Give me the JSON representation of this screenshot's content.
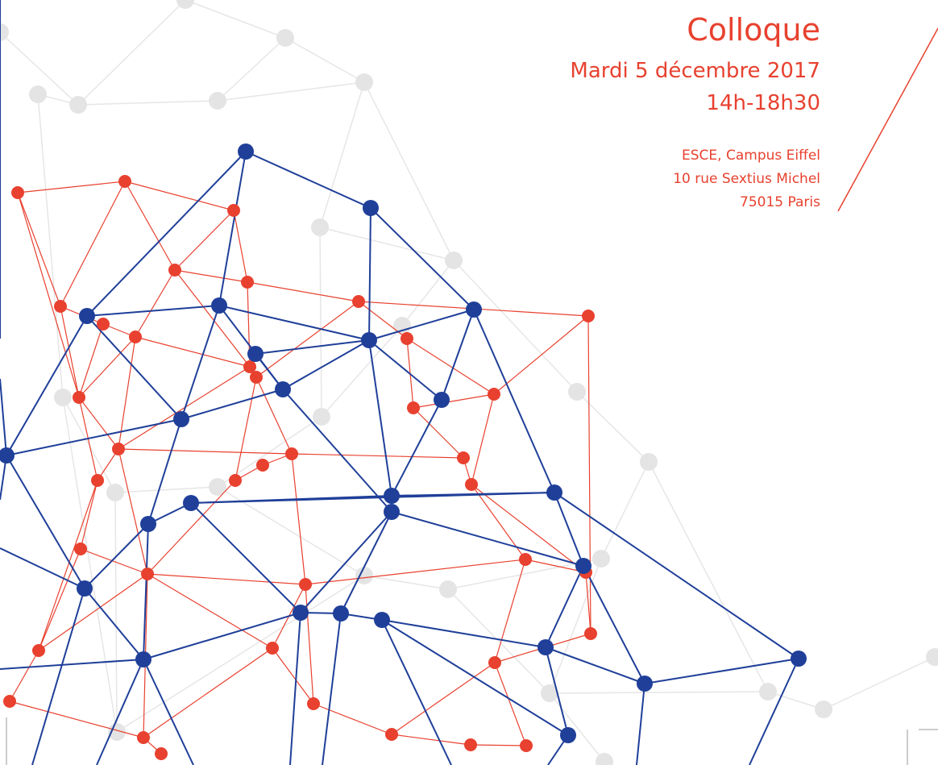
{
  "event": {
    "title": "Colloque",
    "date": "Mardi 5 décembre 2017",
    "time": "14h-18h30",
    "address": [
      "ESCE, Campus Eiffel",
      "10 rue Sextius Michel",
      "75015 Paris"
    ]
  }
}
